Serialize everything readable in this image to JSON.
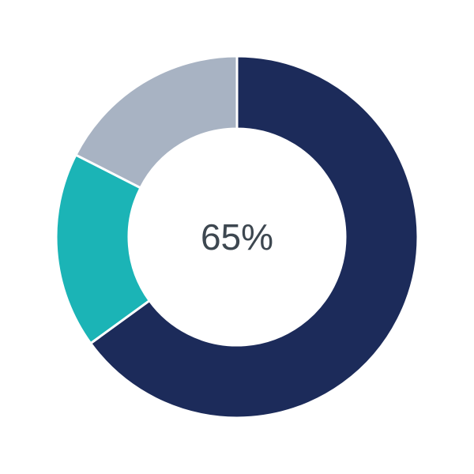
{
  "chart_data": {
    "type": "pie",
    "variant": "donut",
    "center_label": "65%",
    "slices": [
      {
        "value": 65,
        "color": "#1c2b5a"
      },
      {
        "value": 17.5,
        "color": "#1bb4b6"
      },
      {
        "value": 17.5,
        "color": "#a8b3c3"
      }
    ],
    "start": "top",
    "direction": "clockwise",
    "legend": "none"
  }
}
